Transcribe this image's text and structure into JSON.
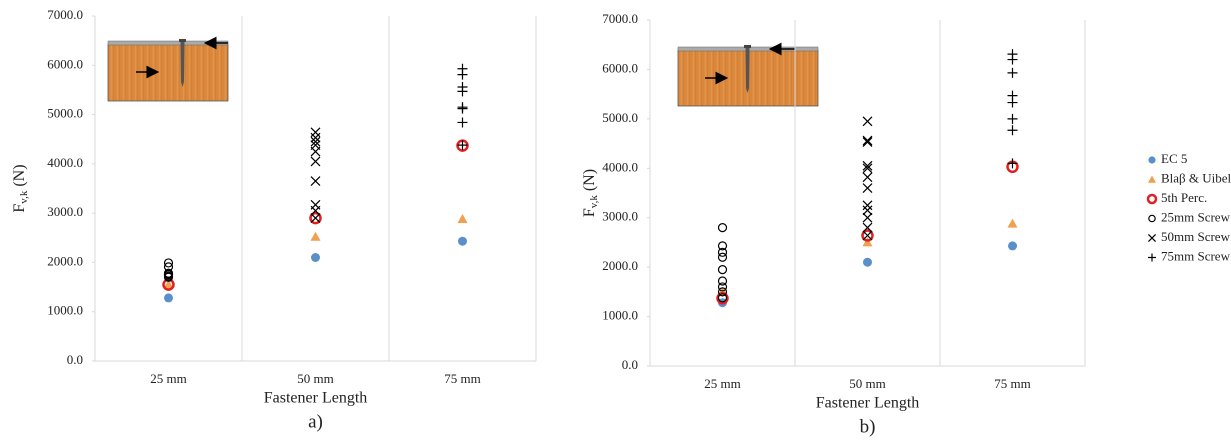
{
  "chart_data": [
    {
      "type": "scatter",
      "label": "a)",
      "x_label": "Fastener Length",
      "y_label": "F",
      "y_label_sub": "v,k",
      "y_label_unit": "(N)",
      "categories": [
        "25 mm",
        "50 mm",
        "75 mm"
      ],
      "ylim": [
        0,
        7000
      ],
      "yticks": [
        {
          "value": 0,
          "label": "0.0"
        },
        {
          "value": 1000,
          "label": "1000.0"
        },
        {
          "value": 2000,
          "label": "2000.0"
        },
        {
          "value": 3000,
          "label": "3000.0"
        },
        {
          "value": 4000,
          "label": "4000.0"
        },
        {
          "value": 5000,
          "label": "5000.0"
        },
        {
          "value": 6000,
          "label": "6000.0"
        },
        {
          "value": 7000,
          "label": "7000.0"
        }
      ],
      "grid": false,
      "legend": false,
      "series": [
        {
          "name": "EC 5",
          "color": "#5b8fc9",
          "marker": "dot",
          "values": [
            1280,
            2100,
            2430
          ]
        },
        {
          "name": "Blaβ & Uibel",
          "color": "#f0a050",
          "marker": "triangle",
          "values": [
            1550,
            2520,
            2880
          ]
        },
        {
          "name": "5th Perc.",
          "color": "#e02020",
          "marker": "ring",
          "values": [
            1550,
            2900,
            4370
          ]
        },
        {
          "name": "25mm Screw",
          "color": "#000000",
          "marker": "circle",
          "values": [
            [
              1990,
              1910,
              1780,
              1760,
              1750,
              1720,
              1700
            ],
            null,
            null
          ]
        },
        {
          "name": "50mm Screw",
          "color": "#000000",
          "marker": "cross",
          "values": [
            null,
            [
              4640,
              4530,
              4450,
              4380,
              4250,
              4050,
              3650,
              3170,
              3050,
              2900
            ],
            null
          ]
        },
        {
          "name": "75mm Screw",
          "color": "#000000",
          "marker": "plus",
          "values": [
            null,
            null,
            [
              5930,
              5810,
              5560,
              5470,
              5150,
              5120,
              4840,
              4380
            ]
          ]
        }
      ]
    },
    {
      "type": "scatter",
      "label": "b)",
      "x_label": "Fastener Length",
      "y_label": "F",
      "y_label_sub": "v,k",
      "y_label_unit": "(N)",
      "categories": [
        "25 mm",
        "50 mm",
        "75 mm"
      ],
      "ylim": [
        0,
        7000
      ],
      "yticks": [
        {
          "value": 0,
          "label": "0.0"
        },
        {
          "value": 1000,
          "label": "1000.0"
        },
        {
          "value": 2000,
          "label": "2000.0"
        },
        {
          "value": 3000,
          "label": "3000.0"
        },
        {
          "value": 4000,
          "label": "4000.0"
        },
        {
          "value": 5000,
          "label": "5000.0"
        },
        {
          "value": 6000,
          "label": "6000.0"
        },
        {
          "value": 7000,
          "label": "7000.0"
        }
      ],
      "grid": false,
      "legend": "right",
      "series": [
        {
          "name": "EC 5",
          "color": "#5b8fc9",
          "marker": "dot",
          "values": [
            1280,
            2100,
            2430
          ]
        },
        {
          "name": "Blaβ & Uibel",
          "color": "#f0a050",
          "marker": "triangle",
          "values": [
            1500,
            2500,
            2880
          ]
        },
        {
          "name": "5th Perc.",
          "color": "#e02020",
          "marker": "ring",
          "values": [
            1370,
            2640,
            4030
          ]
        },
        {
          "name": "25mm Screw",
          "color": "#000000",
          "marker": "circle",
          "values": [
            [
              2800,
              2430,
              2300,
              2200,
              1950,
              1720,
              1600,
              1500,
              1380
            ],
            null,
            null
          ]
        },
        {
          "name": "50mm Screw",
          "color": "#000000",
          "marker": "cross",
          "values": [
            null,
            [
              4950,
              4560,
              4530,
              4050,
              4000,
              3820,
              3600,
              3250,
              3150,
              3000,
              2800,
              2640
            ],
            null
          ]
        },
        {
          "name": "75mm Screw",
          "color": "#000000",
          "marker": "plus",
          "values": [
            null,
            null,
            [
              6310,
              6200,
              5930,
              5470,
              5330,
              5000,
              4770,
              4100
            ]
          ]
        }
      ]
    }
  ]
}
